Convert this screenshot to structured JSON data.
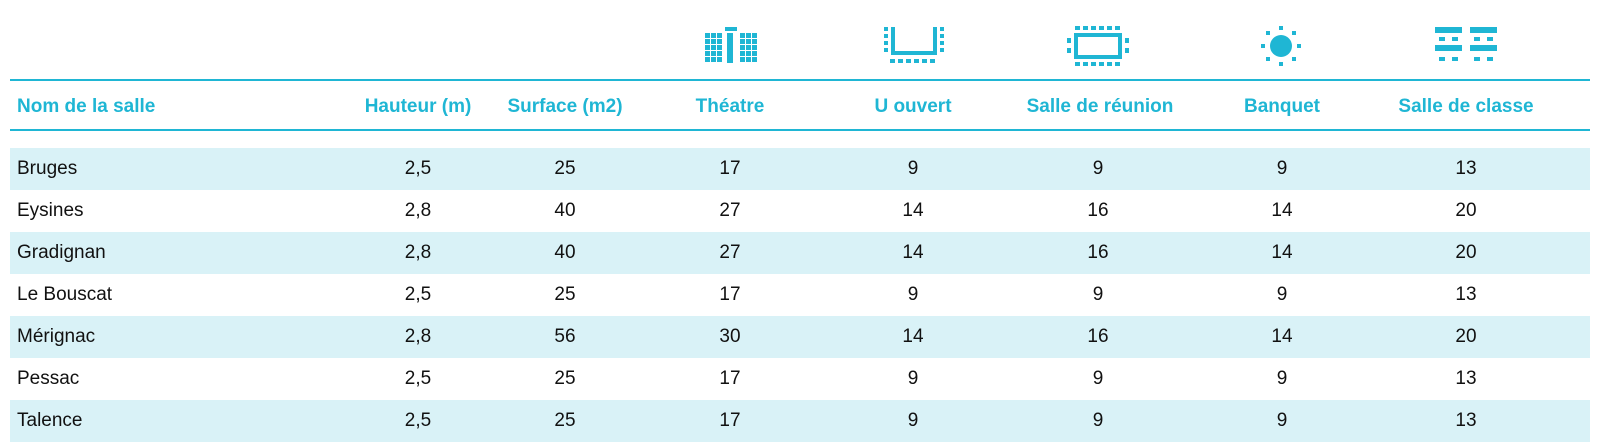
{
  "accent_color": "#1fb6d4",
  "row_shade_color": "#d9f2f7",
  "icons": [
    {
      "column": "Théatre",
      "icon": "theatre-seating-icon"
    },
    {
      "column": "U ouvert",
      "icon": "u-shape-seating-icon"
    },
    {
      "column": "Salle de réunion",
      "icon": "boardroom-seating-icon"
    },
    {
      "column": "Banquet",
      "icon": "banquet-seating-icon"
    },
    {
      "column": "Salle de classe",
      "icon": "classroom-seating-icon"
    }
  ],
  "table": {
    "headers": [
      "Nom de la salle",
      "Hauteur (m)",
      "Surface (m2)",
      "Théatre",
      "U ouvert",
      "Salle de réunion",
      "Banquet",
      "Salle de classe"
    ],
    "rows": [
      [
        "Bruges",
        "2,5",
        "25",
        "17",
        "9",
        "9",
        "9",
        "13"
      ],
      [
        "Eysines",
        "2,8",
        "40",
        "27",
        "14",
        "16",
        "14",
        "20"
      ],
      [
        "Gradignan",
        "2,8",
        "40",
        "27",
        "14",
        "16",
        "14",
        "20"
      ],
      [
        "Le Bouscat",
        "2,5",
        "25",
        "17",
        "9",
        "9",
        "9",
        "13"
      ],
      [
        "Mérignac",
        "2,8",
        "56",
        "30",
        "14",
        "16",
        "14",
        "20"
      ],
      [
        "Pessac",
        "2,5",
        "25",
        "17",
        "9",
        "9",
        "9",
        "13"
      ],
      [
        "Talence",
        "2,5",
        "25",
        "17",
        "9",
        "9",
        "9",
        "13"
      ]
    ]
  }
}
